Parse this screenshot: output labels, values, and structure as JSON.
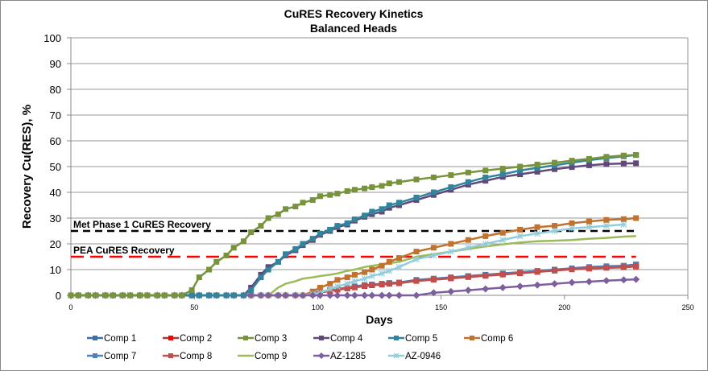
{
  "chart_data": {
    "type": "line",
    "title": "CuRES Recovery Kinetics",
    "subtitle": "Balanced Heads",
    "xlabel": "Days",
    "ylabel": "Recovery Cu(RES), %",
    "xlim": [
      0,
      250
    ],
    "ylim": [
      0,
      100
    ],
    "xticks": [
      0,
      50,
      100,
      150,
      200,
      250
    ],
    "yticks": [
      0,
      10,
      20,
      30,
      40,
      50,
      60,
      70,
      80,
      90,
      100
    ],
    "grid": "horizontal",
    "legend": "bottom",
    "x": [
      0,
      3,
      7,
      10,
      14,
      17,
      21,
      24,
      28,
      31,
      35,
      38,
      42,
      45,
      49,
      52,
      56,
      59,
      63,
      66,
      70,
      73,
      77,
      80,
      84,
      87,
      91,
      94,
      98,
      101,
      105,
      108,
      112,
      115,
      119,
      122,
      126,
      129,
      133,
      140,
      147,
      154,
      161,
      168,
      175,
      182,
      189,
      196,
      203,
      210,
      217,
      224,
      229
    ],
    "reference_lines": [
      {
        "label": "Met Phase 1 CuRES Recovery",
        "value": 25,
        "color": "#000000",
        "x_end": 229
      },
      {
        "label": "PEA CuRES Recovery",
        "value": 15,
        "color": "#FF0000",
        "x_end": 229
      }
    ],
    "series": [
      {
        "name": "Comp 1",
        "color": "#3F6EA6",
        "marker": "square",
        "marker_color": "#3F6EA6",
        "values": [
          0,
          0,
          0,
          0,
          0,
          0,
          0,
          0,
          0,
          0,
          0,
          0,
          0,
          0,
          0,
          0,
          0,
          0,
          0,
          0,
          0,
          0,
          0,
          0,
          0,
          0,
          0,
          0,
          1,
          1.5,
          2,
          2.5,
          3,
          3.5,
          4,
          4.2,
          4.5,
          4.8,
          5,
          6,
          6.5,
          7,
          7.5,
          8,
          8.5,
          9,
          9.5,
          10,
          10.5,
          11,
          11.3,
          11.5,
          12
        ]
      },
      {
        "name": "Comp 2",
        "color": "#A03C3A",
        "marker": "square",
        "marker_color": "#FF0000",
        "values": [
          0,
          0,
          0,
          0,
          0,
          0,
          0,
          0,
          0,
          0,
          0,
          0,
          0,
          0,
          0,
          0,
          0,
          0,
          0,
          0,
          0,
          0,
          0,
          0,
          0,
          0,
          0,
          0,
          0.7,
          1.1,
          1.7,
          2.2,
          2.7,
          3.1,
          3.6,
          3.9,
          4.2,
          4.5,
          4.7,
          5.6,
          6.1,
          6.6,
          7.1,
          7.6,
          8.1,
          8.6,
          9.1,
          9.6,
          10.1,
          10.4,
          10.7,
          10.9,
          11.2
        ]
      },
      {
        "name": "Comp 3",
        "color": "#77933C",
        "marker": "square",
        "marker_color": "#77933C",
        "values": [
          0,
          0,
          0,
          0,
          0,
          0,
          0,
          0,
          0,
          0,
          0,
          0,
          0,
          0,
          2,
          7,
          10,
          13,
          15.5,
          18.5,
          21,
          24.5,
          27,
          30,
          31.5,
          33.5,
          34.5,
          36,
          37,
          38.5,
          39,
          39.5,
          40.5,
          41,
          41.5,
          42,
          42.5,
          43.5,
          44,
          45,
          45.8,
          46.7,
          47.7,
          48.5,
          49.2,
          50,
          50.8,
          51.5,
          52.3,
          53,
          53.8,
          54.3,
          54.5
        ]
      },
      {
        "name": "Comp 4",
        "color": "#60497A",
        "marker": "square",
        "marker_color": "#60497A",
        "values": [
          0,
          0,
          0,
          0,
          0,
          0,
          0,
          0,
          0,
          0,
          0,
          0,
          0,
          0,
          0,
          0,
          0,
          0,
          0,
          0,
          0,
          3,
          8,
          11,
          13,
          15.5,
          17.5,
          19.5,
          21.5,
          23.5,
          25,
          26.5,
          27.5,
          29,
          30.5,
          31.5,
          32.5,
          34,
          35,
          37,
          39,
          41,
          43,
          44.5,
          46,
          47,
          48,
          49,
          49.8,
          50.5,
          51,
          51.2,
          51.3
        ]
      },
      {
        "name": "Comp 5",
        "color": "#31849B",
        "marker": "square",
        "marker_color": "#31849B",
        "values": [
          0,
          0,
          0,
          0,
          0,
          0,
          0,
          0,
          0,
          0,
          0,
          0,
          0,
          0,
          0,
          0,
          0,
          0,
          0,
          0,
          0,
          2,
          7,
          10,
          13,
          16,
          18,
          20,
          22,
          24,
          25.5,
          27,
          28,
          29.5,
          31,
          32.5,
          33.5,
          35,
          36,
          38,
          40,
          42,
          44,
          45.8,
          47,
          48.5,
          49.5,
          50.5,
          51.5,
          52.5,
          53.3,
          54,
          54.5
        ]
      },
      {
        "name": "Comp 6",
        "color": "#C0722E",
        "marker": "square",
        "marker_color": "#C0722E",
        "values": [
          0,
          0,
          0,
          0,
          0,
          0,
          0,
          0,
          0,
          0,
          0,
          0,
          0,
          0,
          0,
          0,
          0,
          0,
          0,
          0,
          0,
          0,
          0,
          0,
          0,
          0,
          0,
          0,
          1.5,
          3,
          4.5,
          6,
          7,
          8,
          9,
          10,
          11.5,
          13,
          14.5,
          17,
          18.5,
          20,
          21.5,
          23,
          24.3,
          25.5,
          26.5,
          27,
          28,
          28.7,
          29.3,
          29.6,
          30
        ]
      },
      {
        "name": "Comp 7",
        "color": "#4F81BD",
        "marker": "square",
        "marker_color": "#4F81BD",
        "values": [
          0,
          0,
          0,
          0,
          0,
          0,
          0,
          0,
          0,
          0,
          0,
          0,
          0,
          0,
          0,
          0,
          0,
          0,
          0,
          0,
          0,
          0,
          0,
          0,
          0,
          0,
          0,
          0,
          0.9,
          1.4,
          1.9,
          2.4,
          2.9,
          3.4,
          3.9,
          4.1,
          4.4,
          4.7,
          5,
          5.9,
          6.4,
          6.9,
          7.4,
          7.9,
          8.4,
          8.9,
          9.4,
          9.9,
          10.4,
          10.9,
          11.2,
          11.4,
          11.8
        ]
      },
      {
        "name": "Comp 8",
        "color": "#C0504D",
        "marker": "square",
        "marker_color": "#C0504D",
        "values": [
          0,
          0,
          0,
          0,
          0,
          0,
          0,
          0,
          0,
          0,
          0,
          0,
          0,
          0,
          0,
          0,
          0,
          0,
          0,
          0,
          0,
          0,
          0,
          0,
          0,
          0,
          0,
          0,
          0.8,
          1.2,
          1.8,
          2.3,
          2.8,
          3.2,
          3.7,
          4,
          4.3,
          4.6,
          4.8,
          5.7,
          6.2,
          6.7,
          7.2,
          7.7,
          8.2,
          8.7,
          9.2,
          9.7,
          10.2,
          10.5,
          10.8,
          11,
          11.3
        ]
      },
      {
        "name": "Comp 9",
        "color": "#9BBB59",
        "marker": "none",
        "marker_color": "#9BBB59",
        "values": [
          0,
          0,
          0,
          0,
          0,
          0,
          0,
          0,
          0,
          0,
          0,
          0,
          0,
          0,
          0,
          0,
          0,
          0,
          0,
          0,
          0,
          0,
          0,
          0,
          3,
          4.5,
          5.5,
          6.5,
          7,
          7.5,
          8,
          8.5,
          9.5,
          10,
          11,
          11.5,
          12,
          12.5,
          13,
          15,
          16,
          17,
          18,
          19,
          19.8,
          20.5,
          21,
          21.2,
          21.5,
          22,
          22.3,
          22.8,
          23
        ]
      },
      {
        "name": "AZ-1285",
        "color": "#7E5F9E",
        "marker": "diamond",
        "marker_color": "#7E5F9E",
        "values": [
          0,
          0,
          0,
          0,
          0,
          0,
          0,
          0,
          0,
          0,
          0,
          0,
          0,
          0,
          0,
          0,
          0,
          0,
          0,
          0,
          0,
          0,
          0,
          0,
          0,
          0,
          0,
          0,
          0,
          0,
          0,
          0,
          0,
          0,
          0,
          0,
          0,
          0,
          0,
          0,
          1,
          1.5,
          2,
          2.5,
          3,
          3.5,
          4,
          4.5,
          5,
          5.3,
          5.7,
          6,
          6.2
        ]
      },
      {
        "name": "AZ-0946",
        "color": "#93CDDD",
        "marker": "asterisk",
        "marker_color": "#93CDDD",
        "values": [
          0,
          0,
          0,
          0,
          0,
          0,
          0,
          0,
          0,
          0,
          0,
          0,
          0,
          0,
          0,
          0,
          0,
          0,
          0,
          0,
          0,
          0,
          0,
          0,
          0,
          0,
          0,
          0,
          0.5,
          1,
          2.5,
          3.5,
          4.5,
          5.5,
          6.5,
          7.5,
          8.5,
          9.5,
          11,
          14,
          15.5,
          17,
          18.5,
          20,
          21.5,
          23,
          24,
          25,
          26,
          26.5,
          27,
          27.5,
          null
        ]
      }
    ]
  }
}
